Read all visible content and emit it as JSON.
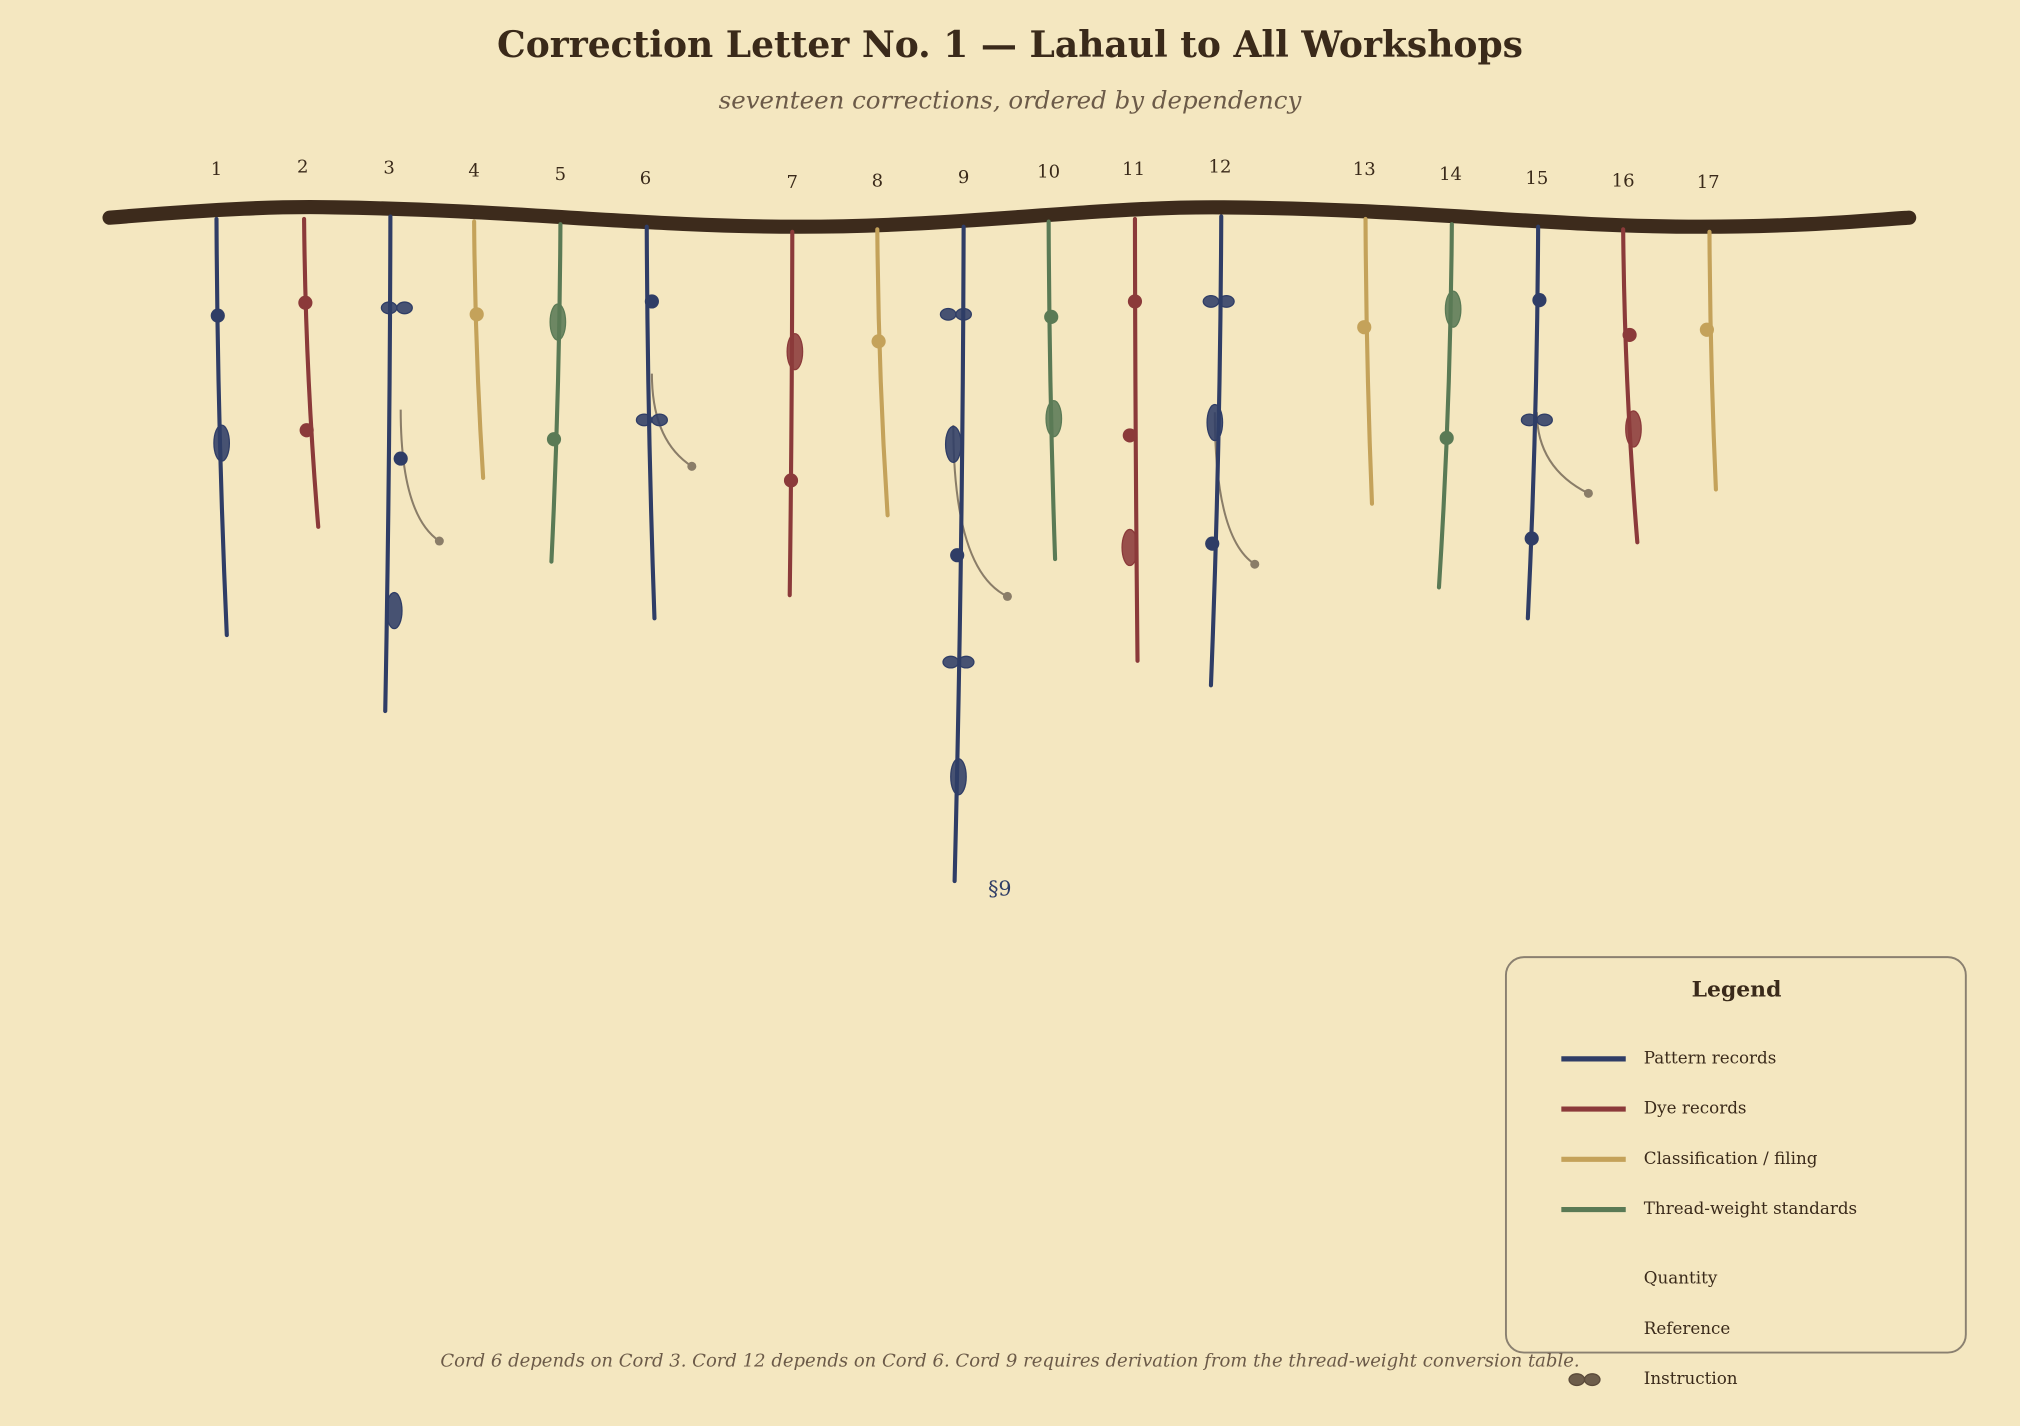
{
  "title": "Correction Letter No. 1 — Lahaul to All Workshops",
  "subtitle": "seventeen corrections, ordered by dependency",
  "cords": [
    "1",
    "2",
    "3",
    "4",
    "5",
    "6",
    "7",
    "8",
    "9",
    "10",
    "11",
    "12",
    "13",
    "14",
    "15",
    "16",
    "17"
  ],
  "annotation": "§9",
  "legend": {
    "title": "Legend",
    "items": [
      "Pattern records",
      "Dye records",
      "Classification / filing",
      "Thread-weight standards",
      "Quantity",
      "Reference",
      "Instruction"
    ]
  },
  "footer": "Cord 6 depends on Cord 3.  Cord 12 depends on Cord 6.  Cord 9 requires derivation from the thread-weight conversion table."
}
